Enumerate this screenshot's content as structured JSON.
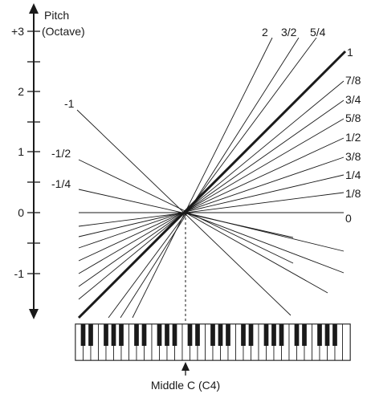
{
  "axis": {
    "title_line1": "Pitch",
    "title_line2": "(Octave)",
    "ticks": [
      {
        "label": "+3",
        "octave": 3
      },
      {
        "label": "2",
        "octave": 2
      },
      {
        "label": "1",
        "octave": 1
      },
      {
        "label": "0",
        "octave": 0
      },
      {
        "label": "-1",
        "octave": -1
      }
    ]
  },
  "key_follow_labels": [
    "-1",
    "-1/2",
    "-1/4",
    "0",
    "1/8",
    "1/4",
    "3/8",
    "1/2",
    "5/8",
    "3/4",
    "7/8",
    "1",
    "5/4",
    "3/2",
    "2"
  ],
  "keyboard": {
    "pointer_label": "Middle C (C4)"
  }
}
